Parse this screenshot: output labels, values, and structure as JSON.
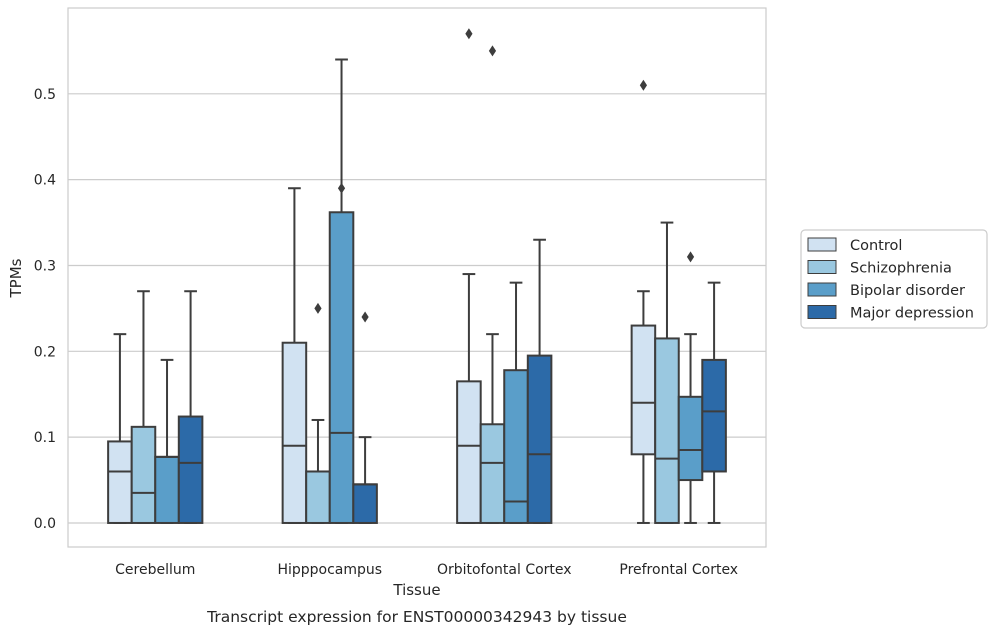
{
  "chart_data": {
    "type": "boxplot",
    "caption": "Transcript expression for ENST00000342943 by tissue",
    "xlabel": "Tissue",
    "ylabel": "TPMs",
    "ylim": [
      -0.028,
      0.6
    ],
    "yticks": [
      "0.0",
      "0.1",
      "0.2",
      "0.3",
      "0.4",
      "0.5"
    ],
    "grid": "horizontal",
    "legend_position": "outside-right",
    "categories": [
      "Cerebellum",
      "Hipppocampus",
      "Orbitofontal Cortex",
      "Prefrontal Cortex"
    ],
    "series": [
      {
        "name": "Control",
        "color": "#d1e2f2",
        "boxes": [
          {
            "min": 0.0,
            "q1": 0.0,
            "median": 0.06,
            "q3": 0.095,
            "max": 0.22,
            "outliers": []
          },
          {
            "min": 0.0,
            "q1": 0.0,
            "median": 0.09,
            "q3": 0.21,
            "max": 0.39,
            "outliers": []
          },
          {
            "min": 0.0,
            "q1": 0.0,
            "median": 0.09,
            "q3": 0.165,
            "max": 0.29,
            "outliers": [
              0.57
            ]
          },
          {
            "min": 0.0,
            "q1": 0.08,
            "median": 0.14,
            "q3": 0.23,
            "max": 0.27,
            "outliers": [
              0.51
            ]
          }
        ]
      },
      {
        "name": "Schizophrenia",
        "color": "#9ac8e0",
        "boxes": [
          {
            "min": 0.0,
            "q1": 0.0,
            "median": 0.035,
            "q3": 0.112,
            "max": 0.27,
            "outliers": []
          },
          {
            "min": 0.0,
            "q1": 0.0,
            "median": 0.06,
            "q3": 0.06,
            "max": 0.12,
            "outliers": [
              0.25
            ]
          },
          {
            "min": 0.0,
            "q1": 0.0,
            "median": 0.07,
            "q3": 0.115,
            "max": 0.22,
            "outliers": [
              0.55
            ]
          },
          {
            "min": 0.0,
            "q1": 0.0,
            "median": 0.075,
            "q3": 0.215,
            "max": 0.35,
            "outliers": []
          }
        ]
      },
      {
        "name": "Bipolar disorder",
        "color": "#5a9ec9",
        "boxes": [
          {
            "min": 0.0,
            "q1": 0.0,
            "median": 0.077,
            "q3": 0.077,
            "max": 0.19,
            "outliers": []
          },
          {
            "min": 0.0,
            "q1": 0.0,
            "median": 0.105,
            "q3": 0.362,
            "max": 0.54,
            "outliers": [
              0.39
            ]
          },
          {
            "min": 0.0,
            "q1": 0.0,
            "median": 0.025,
            "q3": 0.178,
            "max": 0.28,
            "outliers": []
          },
          {
            "min": 0.0,
            "q1": 0.05,
            "median": 0.085,
            "q3": 0.147,
            "max": 0.22,
            "outliers": [
              0.31
            ]
          }
        ]
      },
      {
        "name": "Major depression",
        "color": "#2c6aa8",
        "boxes": [
          {
            "min": 0.0,
            "q1": 0.0,
            "median": 0.07,
            "q3": 0.124,
            "max": 0.27,
            "outliers": []
          },
          {
            "min": 0.0,
            "q1": 0.0,
            "median": 0.045,
            "q3": 0.045,
            "max": 0.1,
            "outliers": [
              0.24
            ]
          },
          {
            "min": 0.0,
            "q1": 0.0,
            "median": 0.08,
            "q3": 0.195,
            "max": 0.33,
            "outliers": []
          },
          {
            "min": 0.0,
            "q1": 0.06,
            "median": 0.13,
            "q3": 0.19,
            "max": 0.28,
            "outliers": []
          }
        ]
      }
    ]
  }
}
